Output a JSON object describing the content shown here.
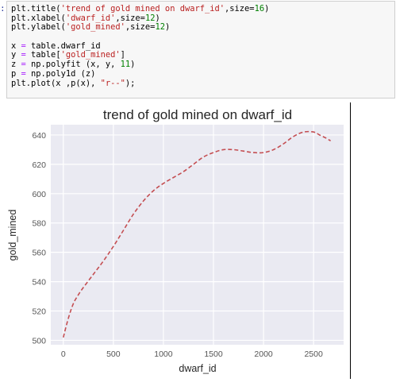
{
  "notebook": {
    "prompt": ":",
    "code_lines": [
      [
        {
          "t": "plt.title("
        },
        {
          "t": "'trend of gold mined on dwarf_id'",
          "c": "str"
        },
        {
          "t": ",size="
        },
        {
          "t": "16",
          "c": "num"
        },
        {
          "t": ")"
        }
      ],
      [
        {
          "t": "plt.xlabel("
        },
        {
          "t": "'dwarf_id'",
          "c": "str"
        },
        {
          "t": ",size="
        },
        {
          "t": "12",
          "c": "num"
        },
        {
          "t": ")"
        }
      ],
      [
        {
          "t": "plt.ylabel("
        },
        {
          "t": "'gold_mined'",
          "c": "str"
        },
        {
          "t": ",size="
        },
        {
          "t": "12",
          "c": "num"
        },
        {
          "t": ")"
        }
      ],
      [],
      [
        {
          "t": "x "
        },
        {
          "t": "=",
          "c": "op"
        },
        {
          "t": " table.dwarf_id"
        }
      ],
      [
        {
          "t": "y "
        },
        {
          "t": "=",
          "c": "op"
        },
        {
          "t": " table["
        },
        {
          "t": "'gold_mined'",
          "c": "str"
        },
        {
          "t": "]"
        }
      ],
      [
        {
          "t": "z "
        },
        {
          "t": "=",
          "c": "op"
        },
        {
          "t": " np.polyfit (x, y, "
        },
        {
          "t": "11",
          "c": "num"
        },
        {
          "t": ")"
        }
      ],
      [
        {
          "t": "p "
        },
        {
          "t": "=",
          "c": "op"
        },
        {
          "t": " np.poly1d (z)"
        }
      ],
      [
        {
          "t": "plt.plot(x ,p(x), "
        },
        {
          "t": "\"r--\"",
          "c": "str"
        },
        {
          "t": ");"
        }
      ]
    ]
  },
  "chart_data": {
    "type": "line",
    "title": "trend of gold mined on dwarf_id",
    "xlabel": "dwarf_id",
    "ylabel": "gold_mined",
    "xlim": [
      -125,
      2800
    ],
    "ylim": [
      497,
      647
    ],
    "xticks": [
      0,
      500,
      1000,
      1500,
      2000,
      2500
    ],
    "yticks": [
      500,
      520,
      540,
      560,
      580,
      600,
      620,
      640
    ],
    "grid": true,
    "colors": {
      "background": "#eaeaf2",
      "grid": "#ffffff",
      "line": "#c44e52",
      "text": "#262626",
      "ticks": "#555555"
    },
    "series": [
      {
        "style": "r--",
        "x": [
          0,
          50,
          100,
          150,
          200,
          300,
          400,
          500,
          600,
          700,
          800,
          900,
          1000,
          1100,
          1200,
          1300,
          1400,
          1500,
          1600,
          1700,
          1800,
          1900,
          2000,
          2100,
          2200,
          2300,
          2400,
          2500,
          2560,
          2620,
          2670
        ],
        "y": [
          502,
          515,
          525,
          531,
          536,
          545,
          554,
          564,
          575,
          586,
          595,
          602,
          607,
          611,
          615,
          620,
          625,
          628,
          630,
          630,
          629,
          628,
          628,
          630,
          634,
          639,
          642,
          642,
          640,
          638,
          636
        ]
      }
    ]
  }
}
